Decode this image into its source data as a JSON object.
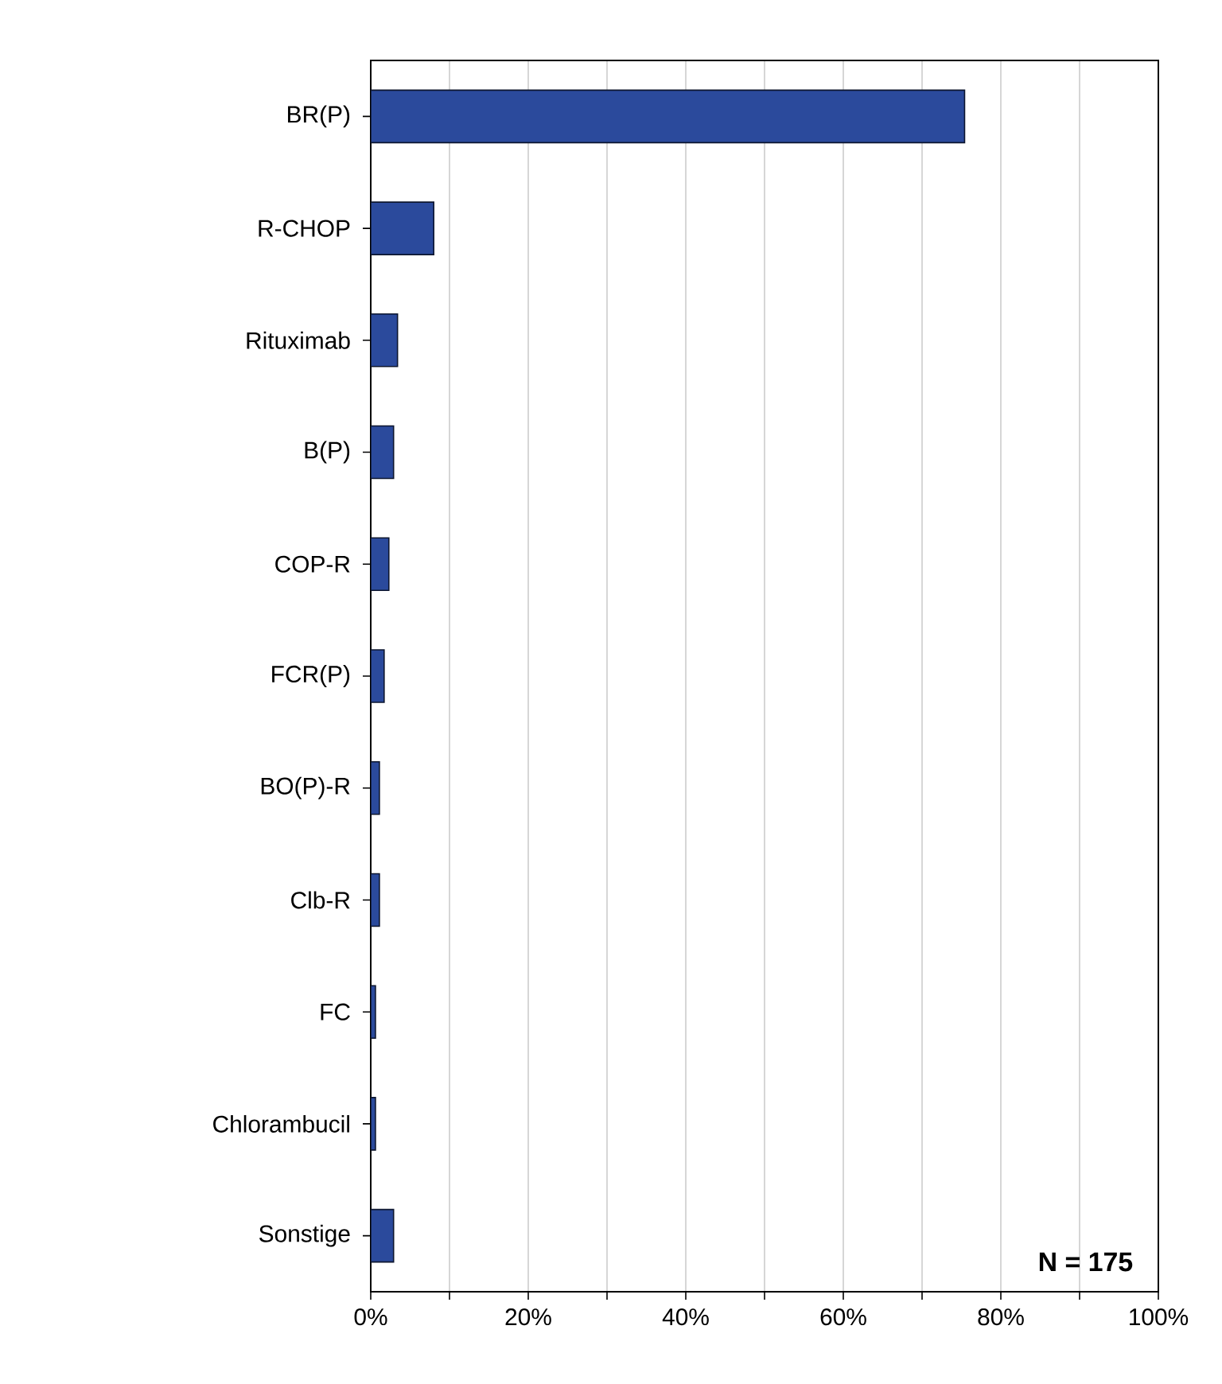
{
  "chart_data": {
    "type": "bar",
    "orientation": "horizontal",
    "categories": [
      "BR(P)",
      "R-CHOP",
      "Rituximab",
      "B(P)",
      "COP-R",
      "FCR(P)",
      "BO(P)-R",
      "Clb-R",
      "FC",
      "Chlorambucil",
      "Sonstige"
    ],
    "values": [
      75.4,
      8.0,
      3.4,
      2.9,
      2.3,
      1.7,
      1.1,
      1.1,
      0.6,
      0.6,
      2.9
    ],
    "color": "#2b4a9c",
    "xlim": [
      0,
      100
    ],
    "xticks": [
      {
        "value": 0,
        "label": "0%"
      },
      {
        "value": 10,
        "label": null
      },
      {
        "value": 20,
        "label": "20%"
      },
      {
        "value": 30,
        "label": null
      },
      {
        "value": 40,
        "label": "40%"
      },
      {
        "value": 50,
        "label": null
      },
      {
        "value": 60,
        "label": "60%"
      },
      {
        "value": 70,
        "label": null
      },
      {
        "value": 80,
        "label": "80%"
      },
      {
        "value": 90,
        "label": null
      },
      {
        "value": 100,
        "label": "100%"
      }
    ],
    "grid": "x",
    "annotations": [
      "N = 175"
    ]
  }
}
